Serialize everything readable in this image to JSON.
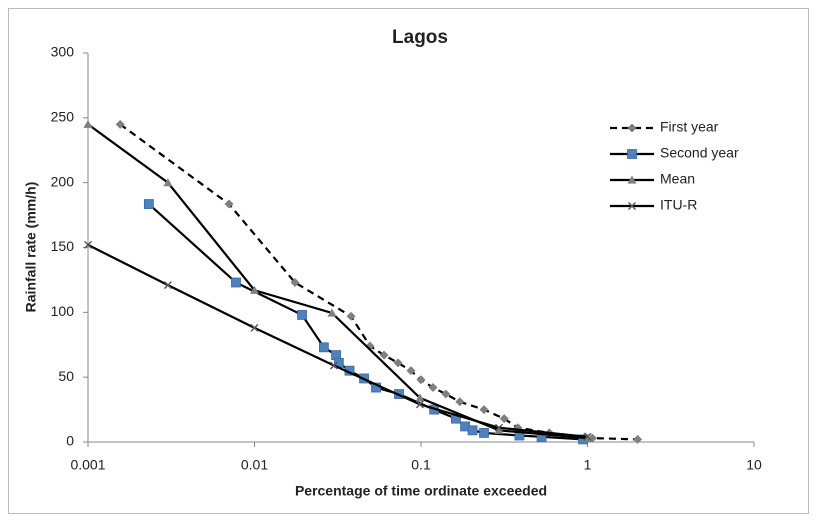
{
  "chart_data": {
    "type": "line",
    "title": "Lagos",
    "x_label": "Percentage of time ordinate exceeded",
    "y_label": "Rainfall rate (mm/h)",
    "x_scale": "log",
    "xlim": [
      0.001,
      10
    ],
    "xticks": [
      0.001,
      0.01,
      0.1,
      1,
      10
    ],
    "ylim": [
      0,
      300
    ],
    "yticks": [
      0,
      50,
      100,
      150,
      200,
      250,
      300
    ],
    "grid": false,
    "legend": "upper right",
    "series": [
      {
        "name": "First year",
        "color": "#000000",
        "marker_color": "#7f7f7f",
        "marker": "diamond",
        "dash": true,
        "x": [
          0.00156,
          0.00703,
          0.0175,
          0.038,
          0.0494,
          0.06,
          0.0728,
          0.087,
          0.1,
          0.118,
          0.141,
          0.171,
          0.239,
          0.316,
          0.382,
          0.59,
          0.97,
          1.07,
          2.0
        ],
        "values": [
          245,
          183.5,
          123,
          97,
          74,
          67,
          61,
          55,
          48,
          42,
          37,
          31,
          25,
          18,
          11,
          7,
          4,
          3,
          2
        ]
      },
      {
        "name": "Second year",
        "color": "#000000",
        "marker_color": "#4f81bd",
        "marker": "square",
        "dash": false,
        "x": [
          0.00232,
          0.00774,
          0.0193,
          0.0261,
          0.0309,
          0.0321,
          0.0372,
          0.0455,
          0.0537,
          0.0738,
          0.12,
          0.162,
          0.184,
          0.204,
          0.239,
          0.39,
          0.53,
          0.94
        ],
        "values": [
          183.5,
          123,
          98,
          73,
          67,
          61,
          55,
          49,
          42,
          37,
          25,
          18,
          12,
          9,
          7,
          5,
          4,
          2
        ]
      },
      {
        "name": "Mean",
        "color": "#000000",
        "marker_color": "#808080",
        "marker": "triangle",
        "dash": false,
        "x": [
          0.001,
          0.00302,
          0.01,
          0.0292,
          0.0986,
          0.294,
          1.0
        ],
        "values": [
          245,
          200,
          117,
          99.5,
          34,
          9,
          3
        ]
      },
      {
        "name": "ITU-R",
        "color": "#000000",
        "marker_color": "#595959",
        "marker": "cross",
        "dash": false,
        "x": [
          0.001,
          0.00302,
          0.01,
          0.03,
          0.0985,
          0.294,
          1.0
        ],
        "values": [
          152,
          121,
          88,
          59,
          29,
          11,
          4
        ]
      }
    ]
  }
}
